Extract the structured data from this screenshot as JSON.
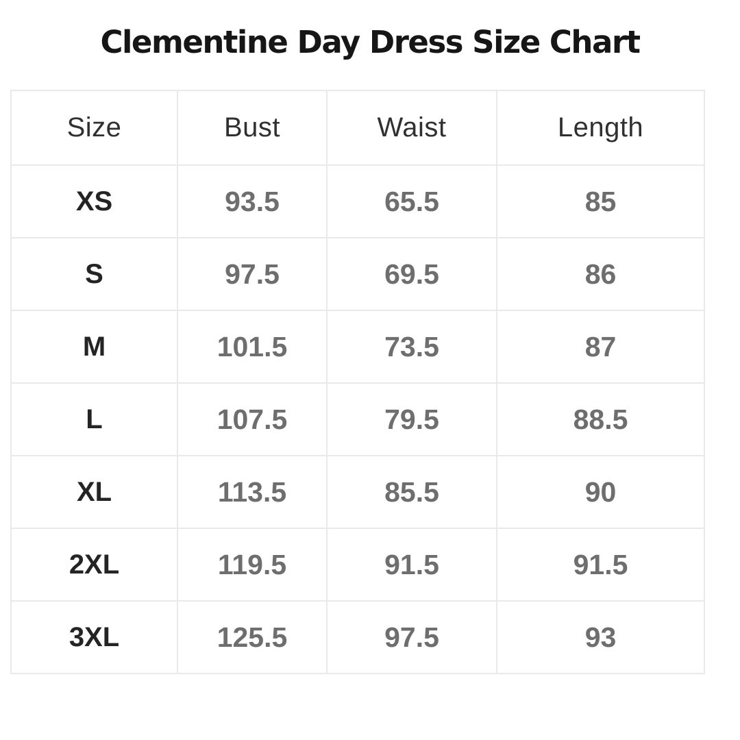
{
  "title": "Clementine Day Dress Size Chart",
  "chart_data": {
    "type": "table",
    "title": "Clementine Day Dress Size Chart",
    "columns": [
      "Size",
      "Bust",
      "Waist",
      "Length"
    ],
    "rows": [
      [
        "XS",
        "93.5",
        "65.5",
        "85"
      ],
      [
        "S",
        "97.5",
        "69.5",
        "86"
      ],
      [
        "M",
        "101.5",
        "73.5",
        "87"
      ],
      [
        "L",
        "107.5",
        "79.5",
        "88.5"
      ],
      [
        "XL",
        "113.5",
        "85.5",
        "90"
      ],
      [
        "2XL",
        "119.5",
        "91.5",
        "91.5"
      ],
      [
        "3XL",
        "125.5",
        "97.5",
        "93"
      ]
    ]
  },
  "colors": {
    "background": "#ffffff",
    "title_text": "#161616",
    "header_text": "#303030",
    "size_label_text": "#242424",
    "value_text": "#6e6e6e",
    "table_border": "#e9e9e9"
  }
}
